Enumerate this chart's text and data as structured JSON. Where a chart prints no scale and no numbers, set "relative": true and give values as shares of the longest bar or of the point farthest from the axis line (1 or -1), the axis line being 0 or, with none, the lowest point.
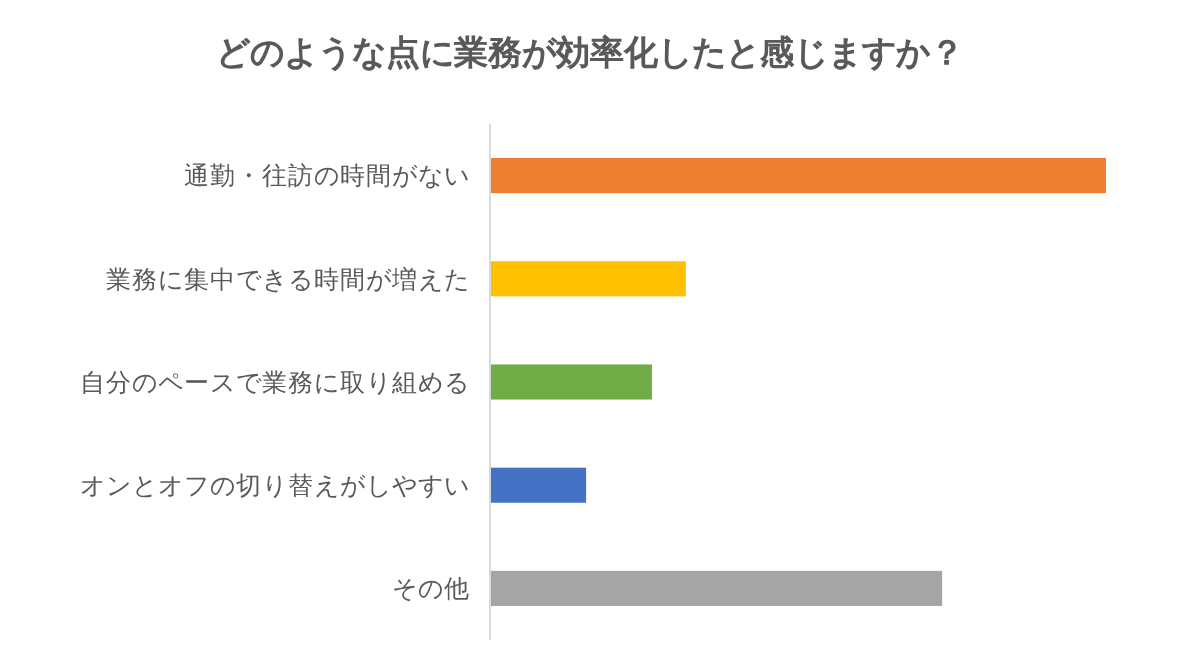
{
  "chart_data": {
    "type": "bar",
    "orientation": "horizontal",
    "relative": true,
    "title": "どのような点に業務が効率化したと感じますか？",
    "categories": [
      "通勤・往訪の時間がない",
      "業務に集中できる時間が増えた",
      "自分のペースで業務に取り組める",
      "オンとオフの切り替えがしやすい",
      "その他"
    ],
    "values": [
      1,
      0.318,
      0.263,
      0.156,
      0.734
    ],
    "colors": [
      "#ed7d31",
      "#ffc000",
      "#70ad47",
      "#4472c4",
      "#a5a5a5"
    ]
  }
}
